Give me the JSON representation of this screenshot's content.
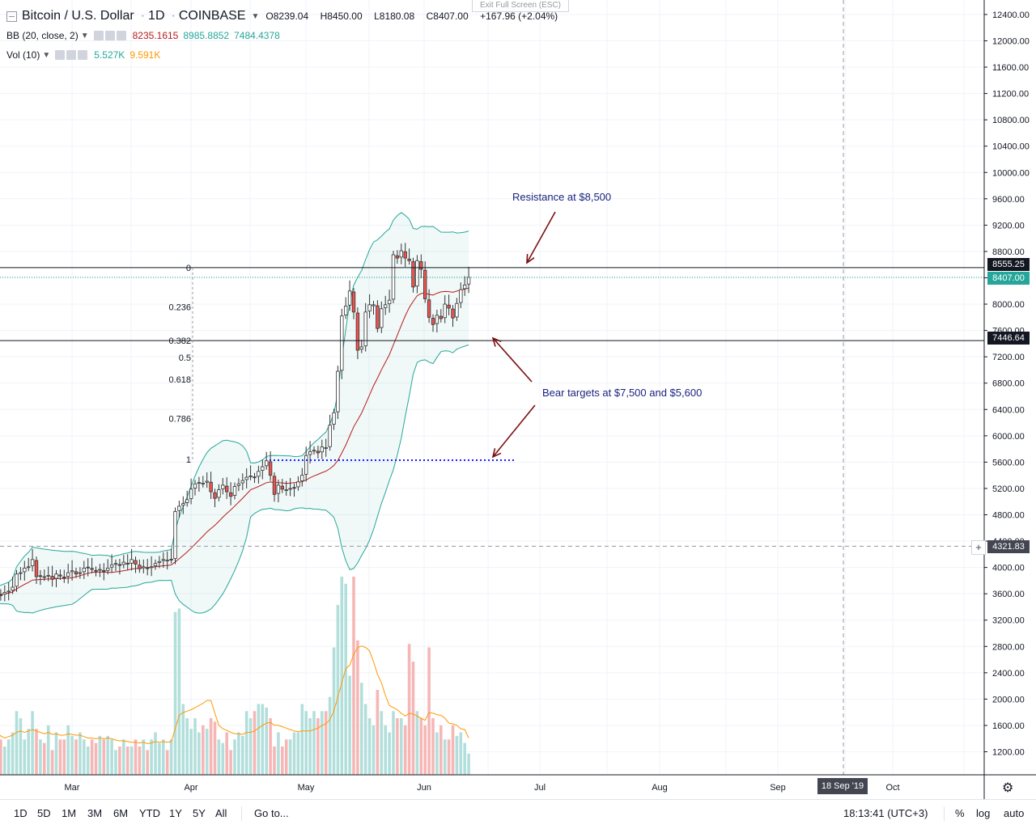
{
  "window": {
    "exit_fullscreen": "Exit Full Screen (ESC)"
  },
  "legend": {
    "symbol": "Bitcoin / U.S. Dollar",
    "interval": "1D",
    "exchange": "COINBASE",
    "open": "O8239.04",
    "high": "H8450.00",
    "low": "L8180.08",
    "close": "C8407.00",
    "change": "+167.96 (+2.04%)",
    "bb_label": "BB (20, close, 2)",
    "bb_basis": "8235.1615",
    "bb_upper": "8985.8852",
    "bb_lower": "7484.4378",
    "vol_label": "Vol (10)",
    "vol_value": "5.527K",
    "vol_ma": "9.591K"
  },
  "colors": {
    "up": "#26a69a",
    "down": "#ef5350",
    "bb_band": "#26a69a",
    "bb_basis": "#b71c1c",
    "vol_up": "#b2dfdb",
    "vol_down": "#f5b7b6",
    "vol_ma": "#ff9800",
    "annotation_text": "#1a237e",
    "arrow": "#7b1010",
    "last_price": "#26a69a"
  },
  "price_labels": {
    "resistance": "8555.25",
    "last": "8407.00",
    "support": "7446.64",
    "cursor": "4321.83"
  },
  "annotations": {
    "resistance": "Resistance at $8,500",
    "bear": "Bear targets at $7,500 and $5,600"
  },
  "time_badge": "18 Sep '19",
  "bottom_bar": {
    "timeframes": [
      "1D",
      "5D",
      "1M",
      "3M",
      "6M",
      "YTD",
      "1Y",
      "5Y",
      "All"
    ],
    "goto": "Go to...",
    "clock": "18:13:41 (UTC+3)",
    "percent": "%",
    "log": "log",
    "auto": "auto"
  },
  "chart_data": {
    "type": "candlestick",
    "x_labels": [
      "Mar",
      "Apr",
      "May",
      "Jun",
      "Jul",
      "Aug",
      "Sep",
      "Oct"
    ],
    "y_ticks": [
      1200,
      1600,
      2000,
      2400,
      2800,
      3200,
      3600,
      4000,
      4400,
      4800,
      5200,
      5600,
      6000,
      6400,
      6800,
      7200,
      7600,
      8000,
      8400,
      8800,
      9200,
      9600,
      10000,
      10400,
      10800,
      11200,
      11600,
      12000,
      12400
    ],
    "ylim": [
      850,
      12620
    ],
    "fib_levels": [
      {
        "label": "0",
        "price": 8555.25
      },
      {
        "label": "0.236",
        "price": 7960
      },
      {
        "label": "0.382",
        "price": 7446.64
      },
      {
        "label": "0.5",
        "price": 7190
      },
      {
        "label": "0.618",
        "price": 6860
      },
      {
        "label": "0.786",
        "price": 6260
      },
      {
        "label": "1",
        "price": 5640
      }
    ],
    "horizontal_lines": [
      {
        "price": 8555.25,
        "style": "solid"
      },
      {
        "price": 7446.64,
        "style": "solid"
      },
      {
        "price": 8407.0,
        "style": "dotted"
      },
      {
        "price": 4321.83,
        "style": "dashed"
      },
      {
        "price": 5630,
        "style": "blue-dotted"
      }
    ],
    "candles_close_approx": [
      3600,
      3580,
      3620,
      3640,
      3700,
      3900,
      3920,
      3990,
      4010,
      4120,
      3860,
      3870,
      3860,
      3880,
      3820,
      3900,
      3870,
      3850,
      3920,
      3950,
      3900,
      3920,
      3990,
      4000,
      3970,
      3950,
      3970,
      3940,
      3990,
      4040,
      4060,
      4030,
      4080,
      4050,
      4120,
      4050,
      3980,
      4010,
      3990,
      4010,
      4060,
      4090,
      4120,
      4110,
      4120,
      4850,
      4930,
      4970,
      5030,
      5190,
      5270,
      5290,
      5280,
      5310,
      5150,
      5050,
      5180,
      5250,
      5150,
      5080,
      5230,
      5270,
      5320,
      5370,
      5390,
      5370,
      5460,
      5530,
      5620,
      5400,
      5110,
      5250,
      5190,
      5180,
      5200,
      5210,
      5300,
      5400,
      5700,
      5760,
      5780,
      5740,
      5830,
      5820,
      6160,
      6350,
      6980,
      7820,
      7970,
      8200,
      7880,
      7300,
      7350,
      7880,
      7990,
      7990,
      7630,
      7930,
      7990,
      8060,
      8750,
      8700,
      8810,
      8700,
      8660,
      8260,
      8660,
      8530,
      8080,
      7800,
      7690,
      7830,
      7780,
      8000,
      7940,
      7790,
      8010,
      8220,
      8290,
      8407
    ],
    "volume_approx": [
      1700,
      1500,
      1400,
      1500,
      1600,
      1900,
      1800,
      1500,
      1650,
      1900,
      1650,
      1500,
      1450,
      1700,
      1350,
      1600,
      1500,
      1500,
      1700,
      1550,
      1500,
      1600,
      1500,
      1400,
      1500,
      1450,
      1550,
      1500,
      1550,
      1500,
      1350,
      1400,
      1500,
      1400,
      1400,
      1500,
      1400,
      1500,
      1350,
      1500,
      1600,
      1450,
      1500,
      1350,
      1500,
      3300,
      3350,
      2000,
      1800,
      1650,
      1800,
      1600,
      1700,
      1650,
      1800,
      1750,
      1500,
      1450,
      1600,
      1350,
      1500,
      1600,
      1550,
      1900,
      1800,
      1900,
      2000,
      2000,
      1950,
      1800,
      1400,
      1600,
      1400,
      1500,
      1500,
      1600,
      1600,
      2000,
      1900,
      1800,
      1900,
      1800,
      1900,
      1900,
      2100,
      2800,
      3400,
      3800,
      3700,
      2400,
      3800,
      2900,
      2300,
      2000,
      1800,
      1700,
      2200,
      1900,
      1700,
      1600,
      1900,
      1800,
      1800,
      1700,
      2850,
      2600,
      1900,
      1800,
      1700,
      2800,
      1800,
      1600,
      1700,
      1500,
      1500,
      1700,
      1550,
      1600,
      1450,
      1300
    ],
    "volume_ma_approx": [
      1600,
      1550,
      1520,
      1540,
      1560,
      1600,
      1620,
      1600,
      1620,
      1640,
      1620,
      1600,
      1580,
      1600,
      1570,
      1580,
      1560,
      1560,
      1580,
      1570,
      1560,
      1560,
      1540,
      1520,
      1520,
      1510,
      1520,
      1510,
      1520,
      1510,
      1490,
      1480,
      1480,
      1470,
      1460,
      1460,
      1450,
      1460,
      1440,
      1450,
      1470,
      1460,
      1470,
      1460,
      1470,
      1650,
      1840,
      1880,
      1900,
      1920,
      1950,
      1980,
      2010,
      2050,
      2050,
      1870,
      1700,
      1650,
      1630,
      1600,
      1580,
      1580,
      1570,
      1600,
      1600,
      1620,
      1660,
      1700,
      1730,
      1740,
      1700,
      1700,
      1680,
      1660,
      1640,
      1620,
      1610,
      1620,
      1620,
      1620,
      1640,
      1660,
      1700,
      1720,
      1780,
      1900,
      2100,
      2300,
      2500,
      2550,
      2700,
      2800,
      2820,
      2800,
      2750,
      2600,
      2420,
      2300,
      2120,
      1980,
      1950,
      1920,
      1870,
      1830,
      1870,
      1860,
      1830,
      1800,
      1770,
      1880,
      1870,
      1850,
      1840,
      1800,
      1730,
      1720,
      1700,
      1650,
      1640,
      1520
    ]
  }
}
